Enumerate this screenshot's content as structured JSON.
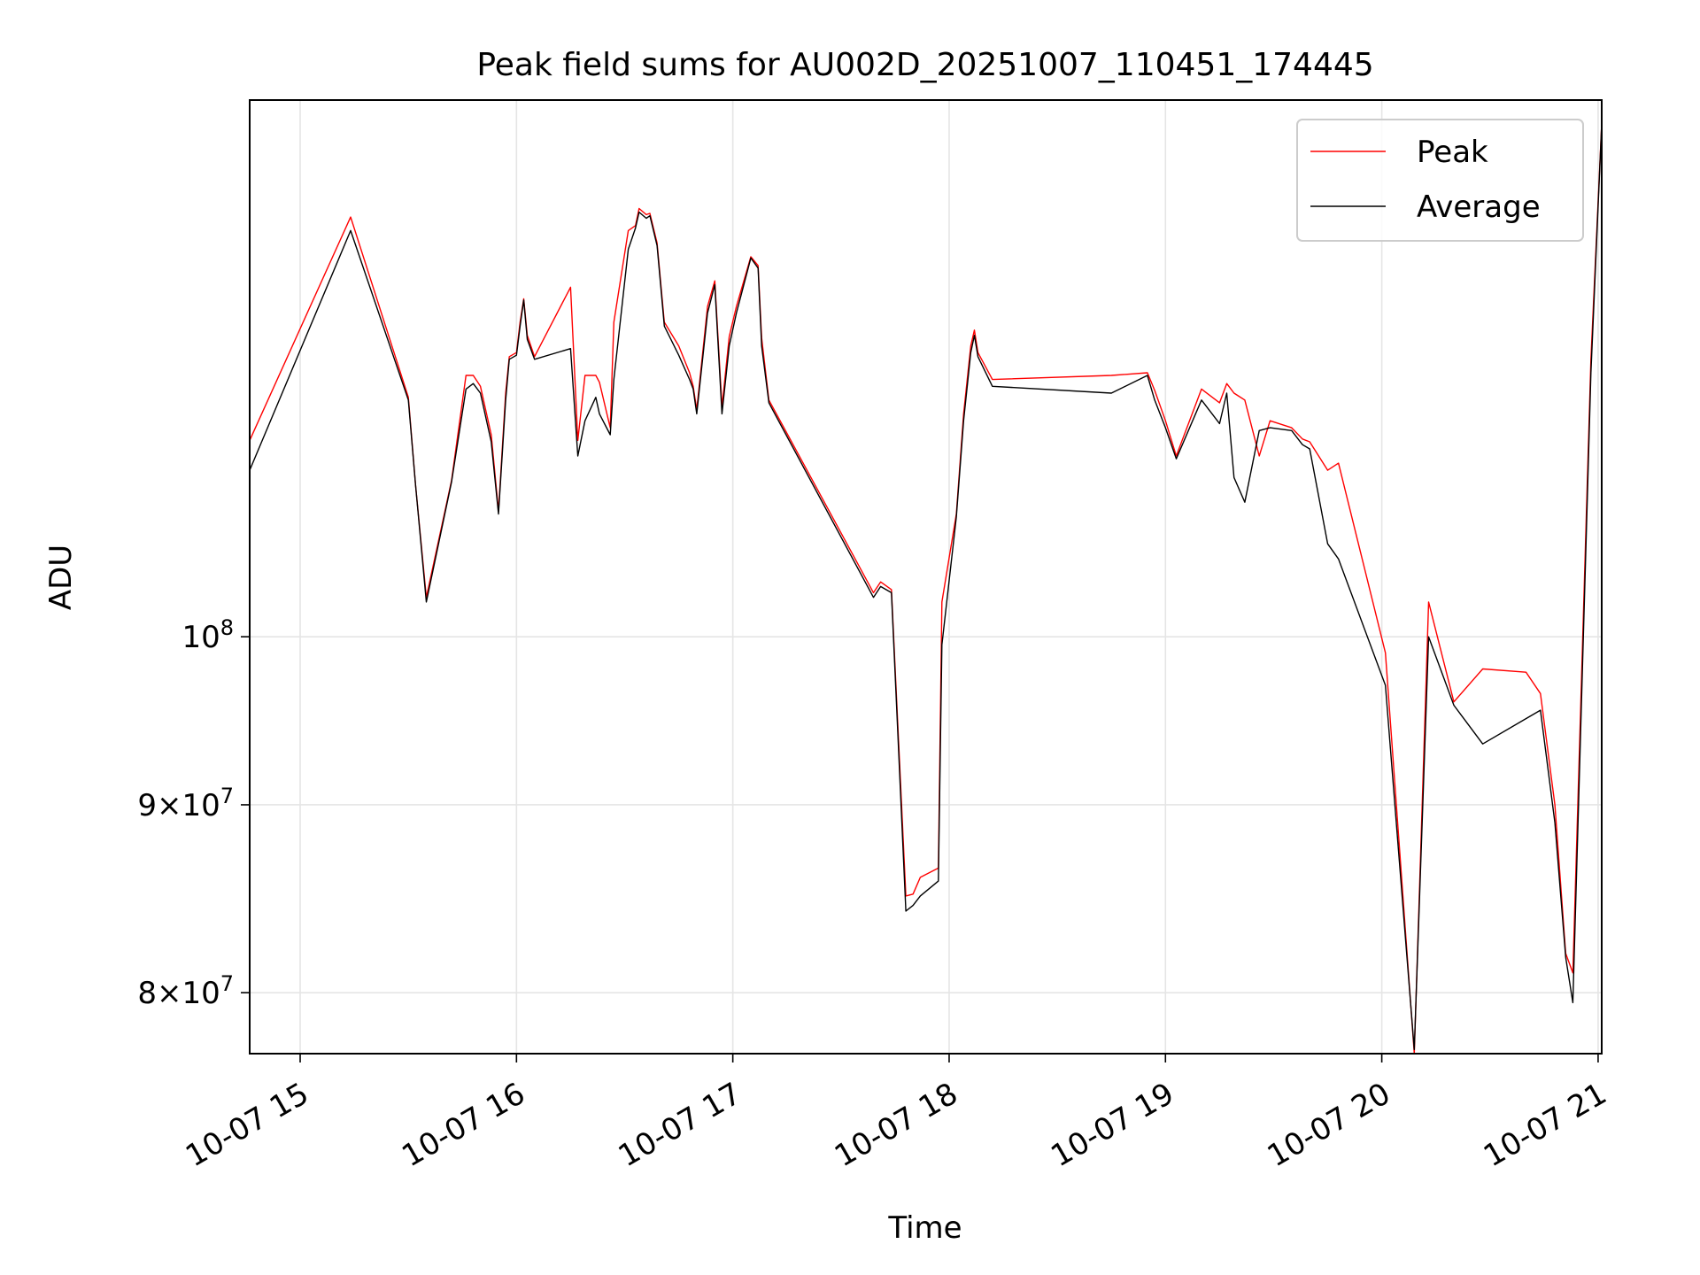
{
  "chart_data": {
    "type": "line",
    "title": "Peak field sums for AU002D_20251007_110451_174445",
    "xlabel": "Time",
    "ylabel": "ADU",
    "y_scale": "log",
    "grid": true,
    "legend_position": "top-right",
    "xlim": [
      "2025-10-07 14:46",
      "2025-10-07 21:01"
    ],
    "ylim": [
      77000000,
      140000000
    ],
    "x_ticks": [
      {
        "value": "2025-10-07 15:00",
        "label": "10-07 15"
      },
      {
        "value": "2025-10-07 16:00",
        "label": "10-07 16"
      },
      {
        "value": "2025-10-07 17:00",
        "label": "10-07 17"
      },
      {
        "value": "2025-10-07 18:00",
        "label": "10-07 18"
      },
      {
        "value": "2025-10-07 19:00",
        "label": "10-07 19"
      },
      {
        "value": "2025-10-07 20:00",
        "label": "10-07 20"
      },
      {
        "value": "2025-10-07 21:00",
        "label": "10-07 21"
      }
    ],
    "y_ticks": [
      {
        "value": 100000000,
        "base": "10",
        "exp": "8",
        "mant": ""
      },
      {
        "value": 90000000,
        "base": "10",
        "exp": "7",
        "mant": "9×"
      },
      {
        "value": 80000000,
        "base": "10",
        "exp": "7",
        "mant": "8×"
      }
    ],
    "series": [
      {
        "name": "Peak",
        "color": "#ff0000",
        "points": [
          [
            "2025-10-07 14:46",
            113100000.0
          ],
          [
            "2025-10-07 15:14",
            130100000.0
          ],
          [
            "2025-10-07 15:30",
            116200000.0
          ],
          [
            "2025-10-07 15:32",
            110000000.0
          ],
          [
            "2025-10-07 15:35",
            102500000.0
          ],
          [
            "2025-10-07 15:42",
            110300000.0
          ],
          [
            "2025-10-07 15:46",
            117800000.0
          ],
          [
            "2025-10-07 15:48",
            117800000.0
          ],
          [
            "2025-10-07 15:50",
            117000000.0
          ],
          [
            "2025-10-07 15:53",
            113500000.0
          ],
          [
            "2025-10-07 15:55",
            108200000.0
          ],
          [
            "2025-10-07 15:57",
            116500000.0
          ],
          [
            "2025-10-07 15:58",
            119200000.0
          ],
          [
            "2025-10-07 16:00",
            119500000.0
          ],
          [
            "2025-10-07 16:01",
            121800000.0
          ],
          [
            "2025-10-07 16:02",
            123600000.0
          ],
          [
            "2025-10-07 16:03",
            120800000.0
          ],
          [
            "2025-10-07 16:05",
            119200000.0
          ],
          [
            "2025-10-07 16:15",
            124500000.0
          ],
          [
            "2025-10-07 16:17",
            113100000.0
          ],
          [
            "2025-10-07 16:19",
            117800000.0
          ],
          [
            "2025-10-07 16:22",
            117800000.0
          ],
          [
            "2025-10-07 16:23",
            117300000.0
          ],
          [
            "2025-10-07 16:26",
            114000000.0
          ],
          [
            "2025-10-07 16:27",
            121800000.0
          ],
          [
            "2025-10-07 16:31",
            129000000.0
          ],
          [
            "2025-10-07 16:33",
            129400000.0
          ],
          [
            "2025-10-07 16:34",
            130800000.0
          ],
          [
            "2025-10-07 16:36",
            130300000.0
          ],
          [
            "2025-10-07 16:37",
            130400000.0
          ],
          [
            "2025-10-07 16:39",
            128000000.0
          ],
          [
            "2025-10-07 16:41",
            121800000.0
          ],
          [
            "2025-10-07 16:45",
            120000000.0
          ],
          [
            "2025-10-07 16:48",
            118000000.0
          ],
          [
            "2025-10-07 16:49",
            117000000.0
          ],
          [
            "2025-10-07 16:50",
            115300000.0
          ],
          [
            "2025-10-07 16:53",
            123000000.0
          ],
          [
            "2025-10-07 16:55",
            125000000.0
          ],
          [
            "2025-10-07 16:57",
            115500000.0
          ],
          [
            "2025-10-07 16:59",
            120700000.0
          ],
          [
            "2025-10-07 17:01",
            123000000.0
          ],
          [
            "2025-10-07 17:05",
            126900000.0
          ],
          [
            "2025-10-07 17:07",
            126200000.0
          ],
          [
            "2025-10-07 17:08",
            120600000.0
          ],
          [
            "2025-10-07 17:10",
            116000000.0
          ],
          [
            "2025-10-07 17:39",
            102800000.0
          ],
          [
            "2025-10-07 17:41",
            103500000.0
          ],
          [
            "2025-10-07 17:44",
            103000000.0
          ],
          [
            "2025-10-07 17:46",
            93500000.0
          ],
          [
            "2025-10-07 17:48",
            85000000.0
          ],
          [
            "2025-10-07 17:50",
            85100000.0
          ],
          [
            "2025-10-07 17:52",
            86000000.0
          ],
          [
            "2025-10-07 17:57",
            86500000.0
          ],
          [
            "2025-10-07 17:58",
            102200000.0
          ],
          [
            "2025-10-07 18:02",
            108000000.0
          ],
          [
            "2025-10-07 18:04",
            115000000.0
          ],
          [
            "2025-10-07 18:06",
            120000000.0
          ],
          [
            "2025-10-07 18:07",
            121200000.0
          ],
          [
            "2025-10-07 18:08",
            119500000.0
          ],
          [
            "2025-10-07 18:12",
            117500000.0
          ],
          [
            "2025-10-07 18:45",
            117800000.0
          ],
          [
            "2025-10-07 18:55",
            118000000.0
          ],
          [
            "2025-10-07 18:57",
            116700000.0
          ],
          [
            "2025-10-07 19:00",
            114500000.0
          ],
          [
            "2025-10-07 19:03",
            112000000.0
          ],
          [
            "2025-10-07 19:10",
            116800000.0
          ],
          [
            "2025-10-07 19:15",
            115800000.0
          ],
          [
            "2025-10-07 19:17",
            117200000.0
          ],
          [
            "2025-10-07 19:19",
            116500000.0
          ],
          [
            "2025-10-07 19:22",
            116000000.0
          ],
          [
            "2025-10-07 19:26",
            112000000.0
          ],
          [
            "2025-10-07 19:29",
            114500000.0
          ],
          [
            "2025-10-07 19:35",
            114000000.0
          ],
          [
            "2025-10-07 19:38",
            113200000.0
          ],
          [
            "2025-10-07 19:40",
            113000000.0
          ],
          [
            "2025-10-07 19:45",
            111000000.0
          ],
          [
            "2025-10-07 19:48",
            111500000.0
          ],
          [
            "2025-10-07 20:01",
            99000000.0
          ],
          [
            "2025-10-07 20:09",
            77000000.0
          ],
          [
            "2025-10-07 20:13",
            102200000.0
          ],
          [
            "2025-10-07 20:20",
            96000000.0
          ],
          [
            "2025-10-07 20:28",
            98000000.0
          ],
          [
            "2025-10-07 20:40",
            97800000.0
          ],
          [
            "2025-10-07 20:44",
            96500000.0
          ],
          [
            "2025-10-07 20:48",
            90000000.0
          ],
          [
            "2025-10-07 20:51",
            82000000.0
          ],
          [
            "2025-10-07 20:53",
            81000000.0
          ],
          [
            "2025-10-07 20:58",
            119000000.0
          ],
          [
            "2025-10-07 21:01",
            138000000.0
          ]
        ]
      },
      {
        "name": "Average",
        "color": "#000000",
        "points": [
          [
            "2025-10-07 14:46",
            111000000.0
          ],
          [
            "2025-10-07 15:14",
            129000000.0
          ],
          [
            "2025-10-07 15:30",
            116000000.0
          ],
          [
            "2025-10-07 15:32",
            110000000.0
          ],
          [
            "2025-10-07 15:35",
            102200000.0
          ],
          [
            "2025-10-07 15:42",
            110200000.0
          ],
          [
            "2025-10-07 15:46",
            116800000.0
          ],
          [
            "2025-10-07 15:48",
            117200000.0
          ],
          [
            "2025-10-07 15:50",
            116500000.0
          ],
          [
            "2025-10-07 15:53",
            113000000.0
          ],
          [
            "2025-10-07 15:55",
            108000000.0
          ],
          [
            "2025-10-07 15:57",
            116000000.0
          ],
          [
            "2025-10-07 15:58",
            119000000.0
          ],
          [
            "2025-10-07 16:00",
            119300000.0
          ],
          [
            "2025-10-07 16:01",
            121500000.0
          ],
          [
            "2025-10-07 16:02",
            123500000.0
          ],
          [
            "2025-10-07 16:03",
            120500000.0
          ],
          [
            "2025-10-07 16:05",
            119000000.0
          ],
          [
            "2025-10-07 16:15",
            119800000.0
          ],
          [
            "2025-10-07 16:17",
            112000000.0
          ],
          [
            "2025-10-07 16:19",
            114500000.0
          ],
          [
            "2025-10-07 16:22",
            116200000.0
          ],
          [
            "2025-10-07 16:23",
            115000000.0
          ],
          [
            "2025-10-07 16:26",
            113500000.0
          ],
          [
            "2025-10-07 16:27",
            117500000.0
          ],
          [
            "2025-10-07 16:31",
            127500000.0
          ],
          [
            "2025-10-07 16:33",
            129200000.0
          ],
          [
            "2025-10-07 16:34",
            130500000.0
          ],
          [
            "2025-10-07 16:36",
            130000000.0
          ],
          [
            "2025-10-07 16:37",
            130200000.0
          ],
          [
            "2025-10-07 16:39",
            127800000.0
          ],
          [
            "2025-10-07 16:41",
            121500000.0
          ],
          [
            "2025-10-07 16:45",
            119300000.0
          ],
          [
            "2025-10-07 16:48",
            117500000.0
          ],
          [
            "2025-10-07 16:49",
            116800000.0
          ],
          [
            "2025-10-07 16:50",
            115000000.0
          ],
          [
            "2025-10-07 16:53",
            122500000.0
          ],
          [
            "2025-10-07 16:55",
            124700000.0
          ],
          [
            "2025-10-07 16:57",
            115000000.0
          ],
          [
            "2025-10-07 16:59",
            120000000.0
          ],
          [
            "2025-10-07 17:01",
            122500000.0
          ],
          [
            "2025-10-07 17:05",
            126800000.0
          ],
          [
            "2025-10-07 17:07",
            126000000.0
          ],
          [
            "2025-10-07 17:08",
            120000000.0
          ],
          [
            "2025-10-07 17:10",
            115800000.0
          ],
          [
            "2025-10-07 17:39",
            102500000.0
          ],
          [
            "2025-10-07 17:41",
            103200000.0
          ],
          [
            "2025-10-07 17:44",
            102800000.0
          ],
          [
            "2025-10-07 17:46",
            93000000.0
          ],
          [
            "2025-10-07 17:48",
            84200000.0
          ],
          [
            "2025-10-07 17:50",
            84500000.0
          ],
          [
            "2025-10-07 17:52",
            85000000.0
          ],
          [
            "2025-10-07 17:57",
            85800000.0
          ],
          [
            "2025-10-07 17:58",
            99500000.0
          ],
          [
            "2025-10-07 18:02",
            107800000.0
          ],
          [
            "2025-10-07 18:04",
            114500000.0
          ],
          [
            "2025-10-07 18:06",
            119500000.0
          ],
          [
            "2025-10-07 18:07",
            120800000.0
          ],
          [
            "2025-10-07 18:08",
            119200000.0
          ],
          [
            "2025-10-07 18:12",
            117000000.0
          ],
          [
            "2025-10-07 18:45",
            116500000.0
          ],
          [
            "2025-10-07 18:55",
            117800000.0
          ],
          [
            "2025-10-07 18:57",
            116000000.0
          ],
          [
            "2025-10-07 19:00",
            114000000.0
          ],
          [
            "2025-10-07 19:03",
            111800000.0
          ],
          [
            "2025-10-07 19:10",
            116000000.0
          ],
          [
            "2025-10-07 19:15",
            114300000.0
          ],
          [
            "2025-10-07 19:17",
            116500000.0
          ],
          [
            "2025-10-07 19:19",
            110500000.0
          ],
          [
            "2025-10-07 19:22",
            108800000.0
          ],
          [
            "2025-10-07 19:26",
            113800000.0
          ],
          [
            "2025-10-07 19:29",
            114000000.0
          ],
          [
            "2025-10-07 19:35",
            113800000.0
          ],
          [
            "2025-10-07 19:38",
            112800000.0
          ],
          [
            "2025-10-07 19:40",
            112500000.0
          ],
          [
            "2025-10-07 19:45",
            106000000.0
          ],
          [
            "2025-10-07 19:48",
            105000000.0
          ],
          [
            "2025-10-07 20:01",
            97000000.0
          ],
          [
            "2025-10-07 20:09",
            77200000.0
          ],
          [
            "2025-10-07 20:13",
            100000000.0
          ],
          [
            "2025-10-07 20:20",
            95800000.0
          ],
          [
            "2025-10-07 20:28",
            93500000.0
          ],
          [
            "2025-10-07 20:40",
            95000000.0
          ],
          [
            "2025-10-07 20:44",
            95500000.0
          ],
          [
            "2025-10-07 20:48",
            89000000.0
          ],
          [
            "2025-10-07 20:51",
            81800000.0
          ],
          [
            "2025-10-07 20:53",
            79500000.0
          ],
          [
            "2025-10-07 20:58",
            118000000.0
          ],
          [
            "2025-10-07 21:01",
            138000000.0
          ]
        ]
      }
    ]
  }
}
